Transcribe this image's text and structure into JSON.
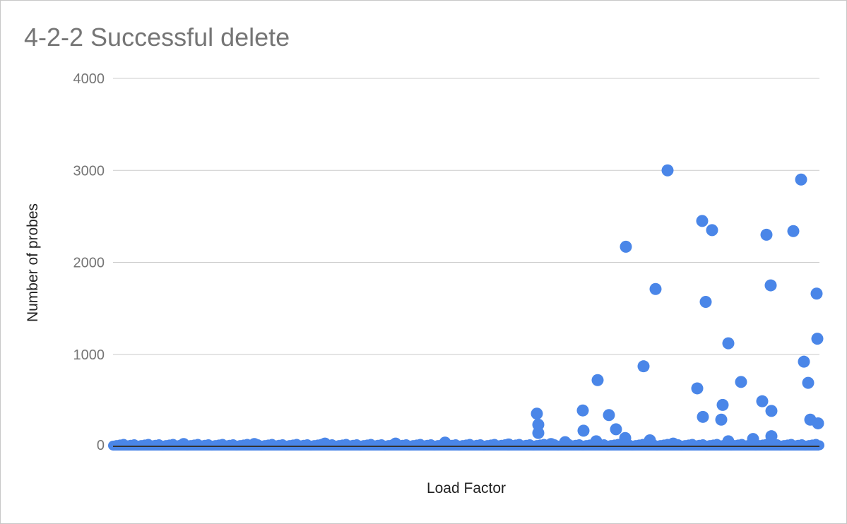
{
  "chart_data": {
    "type": "scatter",
    "title": "4-2-2 Successful delete",
    "xlabel": "Load Factor",
    "ylabel": "Number of probes",
    "ylim": [
      0,
      4000
    ],
    "yticks": [
      "0",
      "1000",
      "2000",
      "3000",
      "4000"
    ],
    "xlim": [
      0,
      1
    ],
    "grid": true,
    "legend": "none",
    "point_color": "#4a86e8",
    "series": [
      {
        "x": [
          0.6,
          0.602,
          0.602,
          0.665,
          0.666,
          0.686,
          0.702,
          0.712,
          0.725,
          0.726,
          0.751,
          0.768,
          0.785,
          0.827,
          0.834,
          0.835,
          0.839,
          0.848,
          0.861,
          0.863,
          0.871,
          0.889,
          0.919,
          0.925,
          0.931,
          0.932,
          0.1,
          0.2,
          0.3,
          0.4,
          0.47,
          0.56,
          0.62,
          0.64,
          0.684,
          0.76,
          0.793,
          0.871,
          0.906,
          0.932,
          0.963,
          0.974,
          0.978,
          0.984,
          0.987,
          0.996,
          0.997
        ],
        "y": [
          355,
          235,
          145,
          390,
          170,
          720,
          340,
          185,
          90,
          2170,
          870,
          1710,
          3000,
          630,
          2450,
          320,
          1570,
          2350,
          290,
          450,
          1120,
          700,
          490,
          2300,
          1750,
          385,
          25,
          25,
          30,
          30,
          40,
          20,
          25,
          45,
          55,
          65,
          30,
          55,
          80,
          110,
          2340,
          2900,
          920,
          690,
          290,
          1660,
          1170
        ]
      }
    ],
    "baseline_y": 8,
    "last_point": {
      "x": 1.0,
      "y": 250
    }
  }
}
